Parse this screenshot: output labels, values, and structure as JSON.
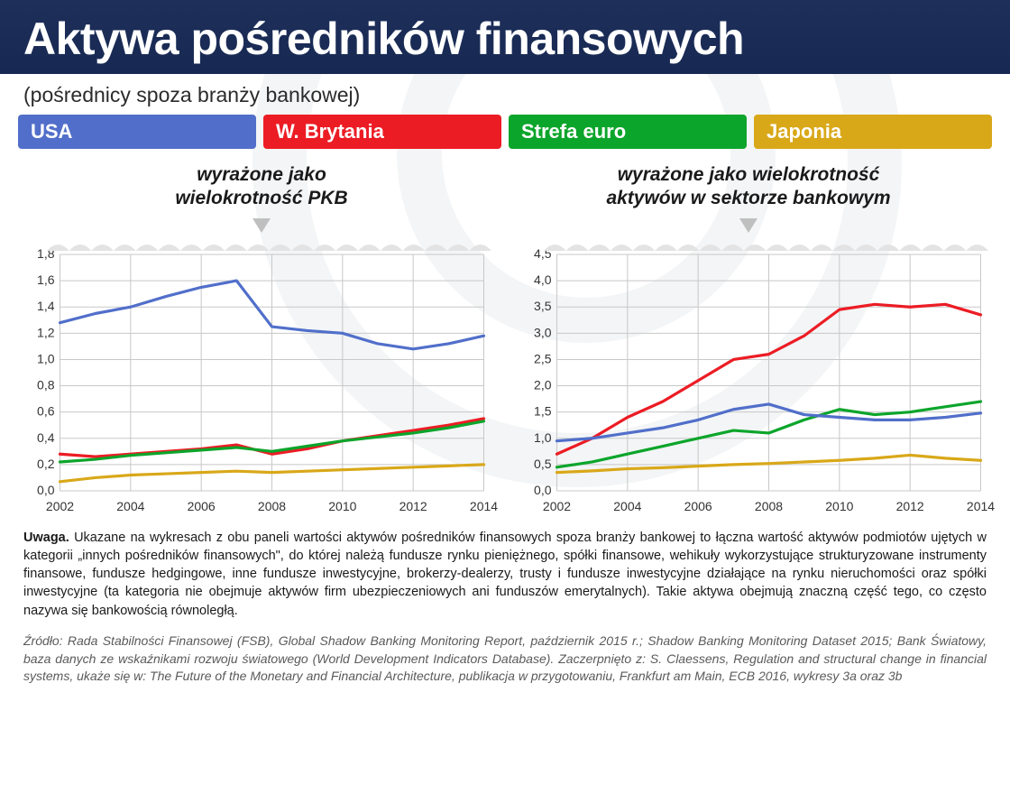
{
  "header": {
    "title": "Aktywa pośredników finansowych"
  },
  "subtitle": "(pośrednicy spoza branży bankowej)",
  "legend": [
    {
      "label": "USA",
      "color": "#516fca"
    },
    {
      "label": "W. Brytania",
      "color": "#ec1c24"
    },
    {
      "label": "Strefa euro",
      "color": "#0ca52b"
    },
    {
      "label": "Japonia",
      "color": "#d9a819"
    }
  ],
  "panels": {
    "left": {
      "label": "wyrażone jako\nwielokrotność PKB"
    },
    "right": {
      "label": "wyrażone jako wielokrotność\naktywów w sektorze bankowym"
    }
  },
  "chart_left": {
    "type": "line",
    "x_years": [
      2002,
      2003,
      2004,
      2005,
      2006,
      2007,
      2008,
      2009,
      2010,
      2011,
      2012,
      2013,
      2014
    ],
    "x_ticks": [
      2002,
      2004,
      2006,
      2008,
      2010,
      2012,
      2014
    ],
    "ylim": [
      0,
      1.8
    ],
    "ytick_step": 0.2,
    "y_formatter": "comma1",
    "background_color": "#ffffff",
    "grid_color": "#c8c8c8",
    "axis_fontsize": 14,
    "line_width": 3.2,
    "series": [
      {
        "name": "USA",
        "color": "#516fca",
        "y": [
          1.28,
          1.35,
          1.4,
          1.48,
          1.55,
          1.6,
          1.25,
          1.22,
          1.2,
          1.12,
          1.08,
          1.12,
          1.18
        ]
      },
      {
        "name": "W. Brytania",
        "color": "#ec1c24",
        "y": [
          0.28,
          0.26,
          0.28,
          0.3,
          0.32,
          0.35,
          0.28,
          0.32,
          0.38,
          0.42,
          0.46,
          0.5,
          0.55
        ]
      },
      {
        "name": "Strefa euro",
        "color": "#0ca52b",
        "y": [
          0.22,
          0.24,
          0.27,
          0.29,
          0.31,
          0.33,
          0.3,
          0.34,
          0.38,
          0.41,
          0.44,
          0.48,
          0.53
        ]
      },
      {
        "name": "Japonia",
        "color": "#d9a819",
        "y": [
          0.07,
          0.1,
          0.12,
          0.13,
          0.14,
          0.15,
          0.14,
          0.15,
          0.16,
          0.17,
          0.18,
          0.19,
          0.2
        ]
      }
    ]
  },
  "chart_right": {
    "type": "line",
    "x_years": [
      2002,
      2003,
      2004,
      2005,
      2006,
      2007,
      2008,
      2009,
      2010,
      2011,
      2012,
      2013,
      2014
    ],
    "x_ticks": [
      2002,
      2004,
      2006,
      2008,
      2010,
      2012,
      2014
    ],
    "ylim": [
      0,
      4.5
    ],
    "ytick_step": 0.5,
    "y_formatter": "comma1",
    "background_color": "#ffffff",
    "grid_color": "#c8c8c8",
    "axis_fontsize": 14,
    "line_width": 3.2,
    "series": [
      {
        "name": "W. Brytania",
        "color": "#ec1c24",
        "y": [
          0.7,
          1.0,
          1.4,
          1.7,
          2.1,
          2.5,
          2.6,
          2.95,
          3.45,
          3.55,
          3.5,
          3.55,
          3.35
        ]
      },
      {
        "name": "Strefa euro",
        "color": "#0ca52b",
        "y": [
          0.45,
          0.55,
          0.7,
          0.85,
          1.0,
          1.15,
          1.1,
          1.35,
          1.55,
          1.45,
          1.5,
          1.6,
          1.7
        ]
      },
      {
        "name": "USA",
        "color": "#516fca",
        "y": [
          0.95,
          1.0,
          1.1,
          1.2,
          1.35,
          1.55,
          1.65,
          1.45,
          1.4,
          1.35,
          1.35,
          1.4,
          1.48
        ]
      },
      {
        "name": "Japonia",
        "color": "#d9a819",
        "y": [
          0.35,
          0.38,
          0.42,
          0.44,
          0.47,
          0.5,
          0.52,
          0.55,
          0.58,
          0.62,
          0.68,
          0.62,
          0.58
        ]
      }
    ]
  },
  "footer": {
    "note_label": "Uwaga.",
    "note": "Ukazane na wykresach z obu paneli wartości aktywów pośredników finansowych spoza branży bankowej to łączna wartość aktywów podmiotów ujętych w kategorii „innych pośredników finansowych\", do której należą fundusze rynku pieniężnego, spółki finansowe, wehikuły wykorzystujące strukturyzowane instrumenty finansowe, fundusze hedgingowe, inne fundusze inwestycyjne, brokerzy-dealerzy, trusty i fundusze inwestycyjne działające na rynku nieruchomości oraz spółki inwestycyjne (ta kategoria nie obejmuje aktywów firm ubezpieczeniowych ani funduszów emerytalnych). Takie aktywa obejmują znaczną część tego, co często nazywa się bankowością równoległą.",
    "source": "Źródło: Rada Stabilności Finansowej (FSB), Global Shadow Banking Monitoring Report, październik 2015 r.; Shadow Banking Monitoring Dataset 2015; Bank Światowy, baza danych ze wskaźnikami rozwoju światowego (World Development Indicators Database). Zaczerpnięto z: S. Claessens, Regulation and structural change in financial systems, ukaże się w: The Future of the Monetary and Financial Architecture, publikacja w przygotowaniu, Frankfurt am Main, ECB 2016, wykresy 3a oraz 3b"
  }
}
